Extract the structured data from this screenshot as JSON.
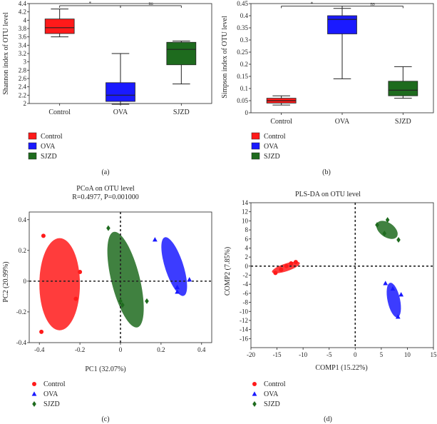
{
  "colors": {
    "control": "#ff1a1a",
    "ova": "#1a1aff",
    "sjzd": "#1e6b1e",
    "axis": "#222222"
  },
  "chart_data": [
    {
      "type": "boxplot",
      "panel": "(a)",
      "ylabel": "Shannon index of OTU level",
      "ylim": [
        2,
        4.4
      ],
      "yticks": [
        "2",
        "2.2",
        "2.4",
        "2.6",
        "2.8",
        "3",
        "3.2",
        "3.4",
        "3.6",
        "3.8",
        "4",
        "4.2",
        "4.4"
      ],
      "categories": [
        "Control",
        "OVA",
        "SJZD"
      ],
      "boxes": [
        {
          "min": 3.6,
          "q1": 3.68,
          "median": 3.82,
          "q3": 4.03,
          "max": 4.27
        },
        {
          "min": 1.98,
          "q1": 2.05,
          "median": 2.2,
          "q3": 2.5,
          "max": 3.2
        },
        {
          "min": 2.47,
          "q1": 2.93,
          "median": 3.3,
          "q3": 3.47,
          "max": 3.5
        }
      ],
      "significance": [
        {
          "from": 0,
          "to": 1,
          "label": "*"
        },
        {
          "from": 1,
          "to": 2,
          "label": "ns"
        }
      ],
      "sig_level": 4.35,
      "legend": [
        "Control",
        "OVA",
        "SJZD"
      ]
    },
    {
      "type": "boxplot",
      "panel": "(b)",
      "ylabel": "Simpson index of OTU level",
      "ylim": [
        0,
        0.45
      ],
      "yticks": [
        "0",
        "0.05",
        "0.1",
        "0.15",
        "0.2",
        "0.25",
        "0.3",
        "0.35",
        "0.4",
        "0.45"
      ],
      "categories": [
        "Control",
        "OVA",
        "SJZD"
      ],
      "boxes": [
        {
          "min": 0.032,
          "q1": 0.04,
          "median": 0.05,
          "q3": 0.06,
          "max": 0.07
        },
        {
          "min": 0.14,
          "q1": 0.325,
          "median": 0.385,
          "q3": 0.4,
          "max": 0.43
        },
        {
          "min": 0.06,
          "q1": 0.07,
          "median": 0.093,
          "q3": 0.13,
          "max": 0.19
        }
      ],
      "significance": [
        {
          "from": 0,
          "to": 1,
          "label": "*"
        },
        {
          "from": 1,
          "to": 2,
          "label": "ns"
        }
      ],
      "sig_level": 0.44,
      "legend": [
        "Control",
        "OVA",
        "SJZD"
      ]
    },
    {
      "type": "scatter",
      "panel": "(c)",
      "title": "PCoA on OTU level",
      "subtitle": "R=0.4977, P=0.001000",
      "xlabel": "PC1 (32.07%)",
      "ylabel": "PC2 (20.99%)",
      "xlim": [
        -0.45,
        0.45
      ],
      "ylim": [
        -0.4,
        0.45
      ],
      "xticks": [
        -0.4,
        -0.2,
        0,
        0.2,
        0.4
      ],
      "yticks": [
        -0.4,
        -0.2,
        0,
        0.2,
        0.4
      ],
      "xtick_labels": [
        "-0.4",
        "-0.2",
        "0",
        "0.2",
        "0.4"
      ],
      "ytick_labels": [
        "-0.4",
        "-0.2",
        "0",
        "0.2",
        "0.4"
      ],
      "series": [
        {
          "name": "Control",
          "marker": "circle",
          "points": [
            [
              -0.38,
              0.295
            ],
            [
              -0.2,
              0.06
            ],
            [
              -0.22,
              -0.115
            ],
            [
              -0.39,
              -0.33
            ]
          ],
          "ellipse": {
            "cx": -0.3,
            "cy": -0.02,
            "rx": 0.1,
            "ry": 0.3,
            "angle": 0
          }
        },
        {
          "name": "OVA",
          "marker": "triangle",
          "points": [
            [
              0.17,
              0.27
            ],
            [
              0.28,
              -0.04
            ],
            [
              0.28,
              -0.07
            ],
            [
              0.34,
              0.01
            ]
          ],
          "ellipse": {
            "cx": 0.265,
            "cy": 0.095,
            "rx": 0.045,
            "ry": 0.2,
            "angle": -18
          }
        },
        {
          "name": "SJZD",
          "marker": "diamond",
          "points": [
            [
              -0.06,
              0.345
            ],
            [
              0.0,
              -0.13
            ],
            [
              0.01,
              -0.155
            ],
            [
              0.13,
              -0.13
            ]
          ],
          "ellipse": {
            "cx": 0.025,
            "cy": 0.01,
            "rx": 0.07,
            "ry": 0.32,
            "angle": -14
          }
        }
      ],
      "legend": [
        "Control",
        "OVA",
        "SJZD"
      ]
    },
    {
      "type": "scatter",
      "panel": "(d)",
      "title": "PLS-DA on OTU level",
      "xlabel": "COMP1 (15.22%)",
      "ylabel": "COMP2 (7.85%)",
      "xlim": [
        -20,
        15
      ],
      "ylim": [
        -18,
        14
      ],
      "xticks": [
        -20,
        -15,
        -10,
        -5,
        0,
        5,
        10,
        15
      ],
      "yticks": [
        -16,
        -14,
        -12,
        -10,
        -8,
        -6,
        -4,
        -2,
        0,
        2,
        4,
        6,
        8,
        10,
        12,
        14
      ],
      "xtick_labels": [
        "-20",
        "-15",
        "-10",
        "-5",
        "0",
        "5",
        "10",
        "15"
      ],
      "ytick_labels": [
        "-16",
        "-14",
        "-12",
        "-10",
        "-8",
        "-6",
        "-4",
        "-2",
        "0",
        "2",
        "4",
        "6",
        "8",
        "10",
        "12",
        "14"
      ],
      "series": [
        {
          "name": "Control",
          "marker": "circle",
          "points": [
            [
              -15.3,
              -1.5
            ],
            [
              -14.2,
              -0.8
            ],
            [
              -13.2,
              0.0
            ],
            [
              -12.3,
              0.6
            ],
            [
              -11.4,
              0.9
            ]
          ],
          "ellipse": {
            "cx": -13.3,
            "cy": -0.3,
            "rx": 2.8,
            "ry": 0.85,
            "angle": -18
          }
        },
        {
          "name": "OVA",
          "marker": "triangle",
          "points": [
            [
              5.8,
              -3.8
            ],
            [
              7.2,
              -5.0
            ],
            [
              8.8,
              -6.3
            ],
            [
              8.2,
              -11.2
            ]
          ],
          "ellipse": {
            "cx": 7.4,
            "cy": -7.5,
            "rx": 1.2,
            "ry": 3.9,
            "angle": -12
          }
        },
        {
          "name": "SJZD",
          "marker": "diamond",
          "points": [
            [
              4.2,
              9.1
            ],
            [
              6.2,
              10.2
            ],
            [
              8.3,
              5.8
            ],
            [
              5.6,
              7.2
            ]
          ],
          "ellipse": {
            "cx": 6.1,
            "cy": 8.0,
            "rx": 2.3,
            "ry": 1.6,
            "angle": 35
          }
        }
      ],
      "legend": [
        "Control",
        "OVA",
        "SJZD"
      ]
    }
  ]
}
